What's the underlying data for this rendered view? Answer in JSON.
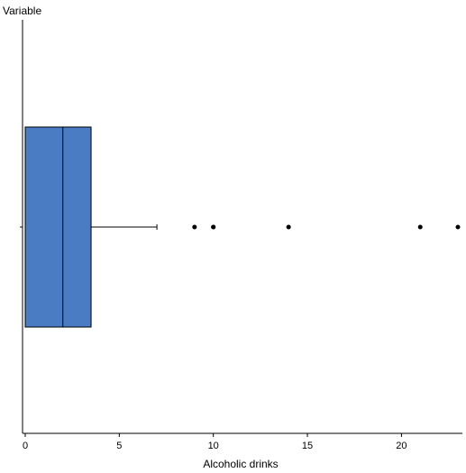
{
  "chart_data": {
    "type": "box",
    "orientation": "horizontal",
    "ylabel": "Variable",
    "xlabel": "Alcoholic drinks",
    "xlim": [
      0,
      23
    ],
    "xticks": [
      0,
      5,
      10,
      15,
      20
    ],
    "grid": false,
    "box": {
      "whisker_low": 0,
      "q1": 0,
      "median": 2,
      "q3": 3.5,
      "whisker_high": 7,
      "outliers": [
        9,
        10,
        10,
        14,
        21,
        23
      ]
    },
    "colors": {
      "box_fill": "#4a7cc3",
      "box_stroke": "#000000",
      "axis": "#000000"
    }
  }
}
